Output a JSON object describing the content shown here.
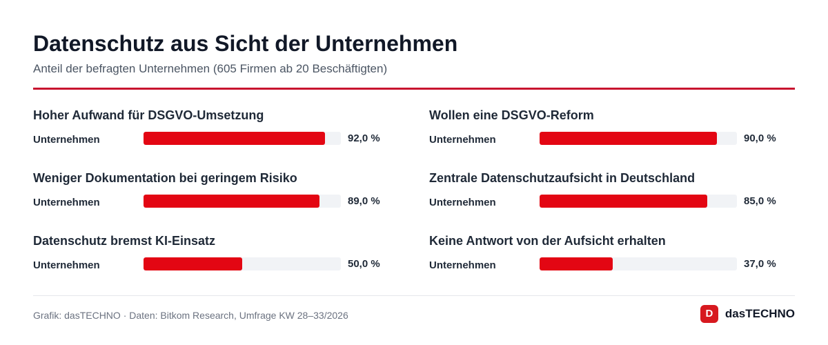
{
  "header": {
    "title": "Datenschutz aus Sicht der Unternehmen",
    "subtitle": "Anteil der befragten Unternehmen (605 Firmen ab 20 Beschäftigten)"
  },
  "chart_data": {
    "type": "bar",
    "orientation": "horizontal",
    "layout": "small-multiples",
    "xlim": [
      0,
      100
    ],
    "unit": "%",
    "bar_color": "#e30613",
    "track_color": "#f1f3f6",
    "accent_color": "#c8102e",
    "panels": [
      {
        "title": "Hoher Aufwand für DSGVO-Umsetzung",
        "category": "Unternehmen",
        "value": 92.0,
        "value_label": "92,0 %"
      },
      {
        "title": "Wollen eine DSGVO-Reform",
        "category": "Unternehmen",
        "value": 90.0,
        "value_label": "90,0 %"
      },
      {
        "title": "Weniger Dokumentation bei geringem Risiko",
        "category": "Unternehmen",
        "value": 89.0,
        "value_label": "89,0 %"
      },
      {
        "title": "Zentrale Datenschutzaufsicht in Deutschland",
        "category": "Unternehmen",
        "value": 85.0,
        "value_label": "85,0 %"
      },
      {
        "title": "Datenschutz bremst KI-Einsatz",
        "category": "Unternehmen",
        "value": 50.0,
        "value_label": "50,0 %"
      },
      {
        "title": "Keine Antwort von der Aufsicht erhalten",
        "category": "Unternehmen",
        "value": 37.0,
        "value_label": "37,0 %"
      }
    ]
  },
  "footer": {
    "source": "Grafik: dasTECHNO · Daten: Bitkom Research, Umfrage KW 28–33/2026",
    "brand_badge": "D",
    "brand_name": "dasTECHNO"
  }
}
